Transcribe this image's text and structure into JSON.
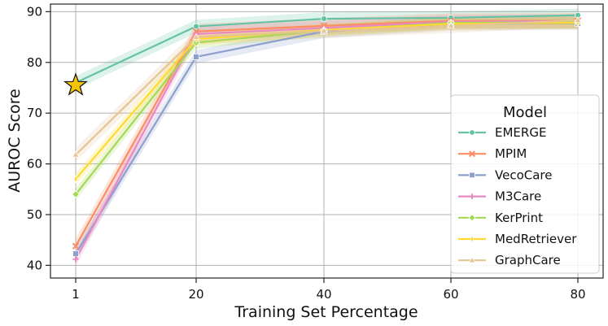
{
  "chart_data": {
    "type": "line",
    "xlabel": "Training Set Percentage",
    "ylabel": "AUROC Score",
    "x": [
      1,
      20,
      40,
      60,
      80
    ],
    "x_tick_labels": [
      "1",
      "20",
      "40",
      "60",
      "80"
    ],
    "x_scale": "categorical-positions",
    "ylim": [
      37.5,
      91.5
    ],
    "y_ticks": [
      40,
      50,
      60,
      70,
      80,
      90
    ],
    "y_tick_labels": [
      "40",
      "50",
      "60",
      "70",
      "80",
      "90"
    ],
    "grid": true,
    "legend": {
      "title": "Model",
      "placement": "center-right"
    },
    "series": [
      {
        "name": "EMERGE",
        "color": "#66c2a5",
        "marker": "circle",
        "values": [
          76.0,
          87.1,
          88.6,
          88.8,
          89.3
        ],
        "band": 1.3
      },
      {
        "name": "MPIM",
        "color": "#fc8d62",
        "marker": "x",
        "values": [
          43.8,
          86.1,
          87.2,
          88.2,
          88.2
        ],
        "band": 1.5
      },
      {
        "name": "VecoCare",
        "color": "#8da0cb",
        "marker": "square",
        "values": [
          42.3,
          81.1,
          86.1,
          87.6,
          87.7
        ],
        "band": 1.3
      },
      {
        "name": "M3Care",
        "color": "#e78ac3",
        "marker": "plus",
        "values": [
          41.2,
          85.6,
          86.8,
          88.0,
          88.1
        ],
        "band": 1.4
      },
      {
        "name": "KerPrint",
        "color": "#a6d854",
        "marker": "diamond",
        "values": [
          54.0,
          83.9,
          86.3,
          87.8,
          87.9
        ],
        "band": 1.2
      },
      {
        "name": "MedRetriever",
        "color": "#ffd92f",
        "marker": "thin-diamond",
        "values": [
          57.0,
          84.6,
          86.4,
          87.6,
          87.8
        ],
        "band": 1.2
      },
      {
        "name": "GraphCare",
        "color": "#e5c494",
        "marker": "triangle",
        "values": [
          61.8,
          85.0,
          86.2,
          87.2,
          88.3
        ],
        "band": 1.4
      }
    ],
    "annotations": [
      {
        "type": "star-marker",
        "x": 1,
        "y": 75.5,
        "color": "#f5c400"
      }
    ]
  }
}
